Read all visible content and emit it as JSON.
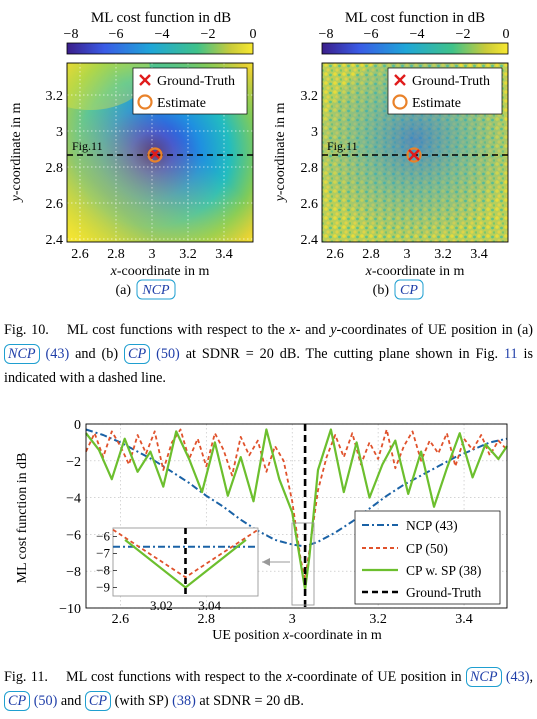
{
  "fig10": {
    "colorbar_title": "ML cost function in dB",
    "colorbar_ticks": [
      "−8",
      "−6",
      "−4",
      "−2",
      "0"
    ],
    "legend": {
      "ground_truth": "Ground-Truth",
      "estimate": "Estimate"
    },
    "xlabel_prefix": "x",
    "xlabel_suffix": "-coordinate in m",
    "ylabel_prefix": "y",
    "ylabel_suffix": "-coordinate in m",
    "xticks": [
      "2.6",
      "2.8",
      "3",
      "3.2",
      "3.4"
    ],
    "yticks": [
      "3.2",
      "3",
      "2.8",
      "2.6",
      "2.4"
    ],
    "cut_label": "Fig.11",
    "sub_a": {
      "label": "(a)",
      "acronym": "NCP"
    },
    "sub_b": {
      "label": "(b)",
      "acronym": "CP"
    }
  },
  "caption10": {
    "num": "Fig. 10.",
    "t1": "ML cost functions with respect to the ",
    "x": "x",
    "t2": "- and ",
    "y": "y",
    "t3": "-coordinates of UE position in (a) ",
    "a_acr": "NCP",
    "a_ref": "(43)",
    "t4": " and (b) ",
    "b_acr": "CP",
    "b_ref": "(50)",
    "t5": " at SDNR = 20 dB. The cutting plane shown in Fig. ",
    "fig_ref": "11",
    "t6": " is indicated with a dashed line."
  },
  "caption11": {
    "num": "Fig. 11.",
    "t1": "ML cost functions with respect to the ",
    "x": "x",
    "t2": "-coordinate of UE position in ",
    "acr1": "NCP",
    "ref1": "(43)",
    "sep1": ", ",
    "acr2": "CP",
    "ref2": "(50)",
    "t3": " and ",
    "acr3": "CP",
    "t4": " (with SP) ",
    "ref3": "(38)",
    "t5": " at SDNR = 20 dB."
  },
  "chart_data": {
    "type": "line",
    "xlabel_prefix": "UE position ",
    "xlabel_var": "x",
    "xlabel_suffix": "-coordinate in m",
    "ylabel": "ML cost function in dB",
    "xlim": [
      2.52,
      3.5
    ],
    "ylim": [
      -10,
      0
    ],
    "xticks": [
      2.6,
      2.8,
      3.0,
      3.2,
      3.4
    ],
    "xtick_labels": [
      "2.6",
      "2.8",
      "3",
      "3.2",
      "3.4"
    ],
    "yticks": [
      0,
      -2,
      -4,
      -6,
      -8,
      -10
    ],
    "ytick_labels": [
      "0",
      "−2",
      "−4",
      "−6",
      "−8",
      "−10"
    ],
    "ground_truth_x": 3.03,
    "legend_position": "lower-right",
    "colors": {
      "ncp": "#1a62a6",
      "cp": "#e0522c",
      "sp": "#6cbf2e",
      "gt": "#000000"
    },
    "series": [
      {
        "name": "NCP (43)",
        "key": "ncp",
        "style": "dash-dot",
        "x": [
          2.52,
          2.56,
          2.6,
          2.64,
          2.68,
          2.72,
          2.76,
          2.8,
          2.84,
          2.88,
          2.92,
          2.96,
          3.0,
          3.03,
          3.06,
          3.1,
          3.14,
          3.18,
          3.22,
          3.26,
          3.3,
          3.34,
          3.38,
          3.42,
          3.46,
          3.5
        ],
        "y": [
          -0.3,
          -0.6,
          -1.0,
          -1.5,
          -2.0,
          -2.6,
          -3.2,
          -3.9,
          -4.5,
          -5.2,
          -5.8,
          -6.3,
          -6.55,
          -6.65,
          -6.4,
          -5.9,
          -5.3,
          -4.6,
          -3.9,
          -3.3,
          -2.8,
          -2.3,
          -1.8,
          -1.4,
          -1.0,
          -0.8
        ]
      },
      {
        "name": "CP (50)",
        "key": "cp",
        "style": "dashed",
        "x": [
          2.52,
          2.54,
          2.56,
          2.58,
          2.6,
          2.62,
          2.64,
          2.66,
          2.68,
          2.7,
          2.72,
          2.74,
          2.76,
          2.78,
          2.8,
          2.82,
          2.84,
          2.86,
          2.88,
          2.9,
          2.92,
          2.94,
          2.96,
          2.98,
          3.0,
          3.02,
          3.03,
          3.04,
          3.06,
          3.08,
          3.1,
          3.12,
          3.14,
          3.16,
          3.18,
          3.2,
          3.22,
          3.24,
          3.26,
          3.28,
          3.3,
          3.32,
          3.34,
          3.36,
          3.38,
          3.4,
          3.42,
          3.44,
          3.46,
          3.48,
          3.5
        ],
        "y": [
          -1.5,
          -0.5,
          -1.8,
          -0.4,
          -1.2,
          -2.2,
          -0.6,
          -1.6,
          -0.4,
          -2.5,
          -1.0,
          -0.3,
          -1.9,
          -0.8,
          -2.3,
          -0.5,
          -1.4,
          -2.8,
          -0.7,
          -1.7,
          -0.9,
          -2.6,
          -1.2,
          -2.0,
          -4.2,
          -7.4,
          -8.4,
          -6.9,
          -3.6,
          -1.8,
          -0.6,
          -1.8,
          -0.5,
          -2.2,
          -1.0,
          -1.9,
          -0.3,
          -2.4,
          -1.2,
          -0.4,
          -2.0,
          -0.9,
          -1.6,
          -0.5,
          -2.3,
          -0.8,
          -1.4,
          -0.6,
          -1.7,
          -0.9,
          -1.4
        ]
      },
      {
        "name": "CP w. SP (38)",
        "key": "sp",
        "style": "solid",
        "x": [
          2.52,
          2.55,
          2.58,
          2.61,
          2.64,
          2.67,
          2.7,
          2.73,
          2.76,
          2.79,
          2.82,
          2.85,
          2.88,
          2.91,
          2.94,
          2.97,
          3.0,
          3.02,
          3.03,
          3.04,
          3.06,
          3.09,
          3.12,
          3.15,
          3.18,
          3.21,
          3.24,
          3.27,
          3.3,
          3.33,
          3.36,
          3.39,
          3.42,
          3.45,
          3.48,
          3.5
        ],
        "y": [
          -0.5,
          -1.4,
          -3.0,
          -0.8,
          -2.6,
          -1.5,
          -3.4,
          -0.4,
          -1.9,
          -3.7,
          -1.0,
          -3.9,
          -1.8,
          -4.2,
          -0.3,
          -3.0,
          -4.8,
          -7.6,
          -9.0,
          -7.2,
          -2.5,
          -0.3,
          -3.7,
          -1.0,
          -4.0,
          -2.2,
          -0.9,
          -3.8,
          -1.5,
          -4.5,
          -2.4,
          -0.5,
          -2.9,
          -1.1,
          -1.9,
          -1.2
        ]
      },
      {
        "name": "Ground-Truth",
        "key": "gt",
        "style": "bold-dashed"
      }
    ],
    "inset": {
      "xlim": [
        3.0,
        3.06
      ],
      "ylim": [
        -9.5,
        -5.5
      ],
      "xtick_labels": [
        "3.02",
        "3.04"
      ],
      "ytick_labels": [
        "−6",
        "−7",
        "−8",
        "−9"
      ]
    }
  }
}
